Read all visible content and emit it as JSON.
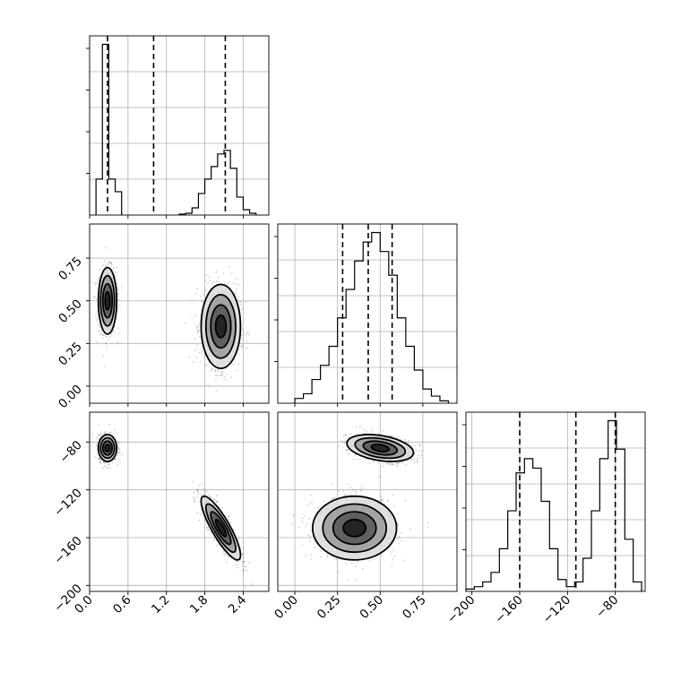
{
  "chart_data": {
    "type": "corner",
    "parameters": [
      {
        "id": "p0",
        "range": [
          0,
          2.8
        ],
        "tick_labels": [
          "0.0",
          "0.6",
          "1.2",
          "1.8",
          "2.4"
        ],
        "ticks": [
          0.0,
          0.6,
          1.2,
          1.8,
          2.4
        ],
        "quantiles": [
          0.28,
          1.0,
          2.12
        ],
        "histogram": {
          "bins": [
            [
              0.1,
              0.2
            ],
            [
              0.2,
              0.3
            ],
            [
              0.3,
              0.4
            ],
            [
              0.4,
              0.5
            ],
            [
              1.4,
              1.5
            ],
            [
              1.5,
              1.6
            ],
            [
              1.6,
              1.7
            ],
            [
              1.7,
              1.8
            ],
            [
              1.8,
              1.9
            ],
            [
              1.9,
              2.0
            ],
            [
              2.0,
              2.1
            ],
            [
              2.1,
              2.2
            ],
            [
              2.2,
              2.3
            ],
            [
              2.3,
              2.4
            ],
            [
              2.4,
              2.5
            ],
            [
              2.5,
              2.6
            ]
          ],
          "counts": [
            0.2,
            0.95,
            0.2,
            0.13,
            0.005,
            0.01,
            0.04,
            0.12,
            0.2,
            0.27,
            0.34,
            0.36,
            0.26,
            0.1,
            0.03,
            0.01
          ]
        }
      },
      {
        "id": "p1",
        "range": [
          -0.1,
          0.95
        ],
        "tick_labels": [
          "0.00",
          "0.25",
          "0.50",
          "0.75"
        ],
        "ticks": [
          0.0,
          0.25,
          0.5,
          0.75
        ],
        "quantiles": [
          0.28,
          0.43,
          0.57
        ],
        "histogram": {
          "bins": [
            [
              0.0,
              0.05
            ],
            [
              0.05,
              0.1
            ],
            [
              0.1,
              0.15
            ],
            [
              0.15,
              0.2
            ],
            [
              0.2,
              0.25
            ],
            [
              0.25,
              0.3
            ],
            [
              0.3,
              0.35
            ],
            [
              0.35,
              0.4
            ],
            [
              0.4,
              0.45
            ],
            [
              0.45,
              0.5
            ],
            [
              0.5,
              0.55
            ],
            [
              0.55,
              0.6
            ],
            [
              0.6,
              0.65
            ],
            [
              0.65,
              0.7
            ],
            [
              0.7,
              0.75
            ],
            [
              0.75,
              0.8
            ],
            [
              0.8,
              0.85
            ],
            [
              0.85,
              0.9
            ]
          ],
          "counts": [
            0.01,
            0.02,
            0.05,
            0.08,
            0.12,
            0.18,
            0.24,
            0.3,
            0.34,
            0.36,
            0.32,
            0.27,
            0.18,
            0.12,
            0.07,
            0.03,
            0.015,
            0.005
          ]
        }
      },
      {
        "id": "p2",
        "range": [
          -205,
          -55
        ],
        "tick_labels": [
          "-200",
          "-160",
          "-120",
          "-80"
        ],
        "ticks": [
          -200,
          -160,
          -120,
          -80
        ],
        "quantiles": [
          -160,
          -113,
          -80
        ],
        "histogram": {
          "bins": [
            [
              -205,
              -198
            ],
            [
              -198,
              -191
            ],
            [
              -191,
              -184
            ],
            [
              -184,
              -177
            ],
            [
              -177,
              -170
            ],
            [
              -170,
              -163
            ],
            [
              -163,
              -156
            ],
            [
              -156,
              -149
            ],
            [
              -149,
              -142
            ],
            [
              -142,
              -135
            ],
            [
              -135,
              -128
            ],
            [
              -128,
              -121
            ],
            [
              -121,
              -114
            ],
            [
              -114,
              -107
            ],
            [
              -107,
              -100
            ],
            [
              -100,
              -93
            ],
            [
              -93,
              -86
            ],
            [
              -86,
              -79
            ],
            [
              -79,
              -72
            ],
            [
              -72,
              -65
            ],
            [
              -65,
              -58
            ]
          ],
          "counts": [
            0.005,
            0.01,
            0.02,
            0.04,
            0.09,
            0.17,
            0.25,
            0.28,
            0.26,
            0.19,
            0.09,
            0.025,
            0.01,
            0.02,
            0.07,
            0.17,
            0.28,
            0.36,
            0.3,
            0.11,
            0.02
          ]
        }
      }
    ],
    "modes": [
      {
        "center": [
          0.28,
          0.5,
          -85
        ],
        "sd": [
          0.07,
          0.095,
          5.5
        ],
        "rho": {
          "0-1": 0.0,
          "0-2": 0.0,
          "1-2": -0.35
        },
        "weight": 0.5
      },
      {
        "center": [
          2.05,
          0.35,
          -152
        ],
        "sd": [
          0.15,
          0.12,
          13.0
        ],
        "rho": {
          "0-1": 0.0,
          "0-2": -0.85,
          "1-2": 0.0
        },
        "weight": 0.5
      }
    ],
    "contour_levels_sigma": [
      0.55,
      1.05,
      1.55,
      2.05
    ],
    "grid": true,
    "legend": "none"
  }
}
